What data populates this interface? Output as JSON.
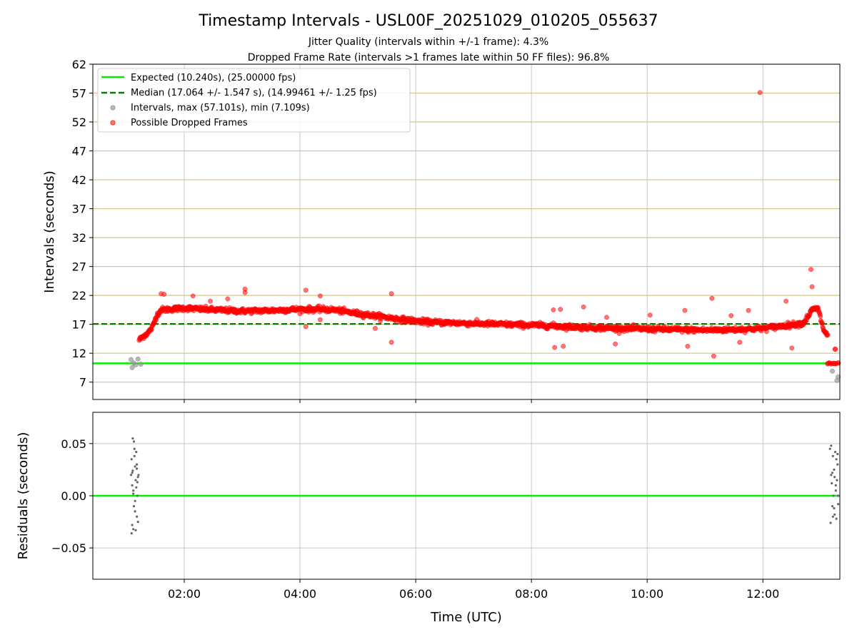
{
  "chart_data": [
    {
      "type": "scatter",
      "title": "Timestamp Intervals - USL00F_20251029_010205_055637",
      "subtitle_lines": [
        "Jitter Quality (intervals within +/-1 frame): 4.3%",
        "Dropped Frame Rate (intervals >1 frames late within 50 FF files): 96.8%"
      ],
      "xlabel": "",
      "ylabel": "Intervals (seconds)",
      "xlim_hours": [
        0.42,
        13.33
      ],
      "ylim": [
        4,
        62
      ],
      "yticks": [
        7,
        12,
        17,
        22,
        27,
        32,
        37,
        42,
        47,
        52,
        57,
        62
      ],
      "expected_interval": 10.24,
      "median_interval": 17.064,
      "legend": [
        "Expected (10.240s), (25.00000 fps)",
        "Median (17.064 +/- 1.547 s), (14.99461 +/- 1.25 fps)",
        "Intervals, max (57.101s), min (7.109s)",
        "Possible Dropped Frames"
      ],
      "legend_position": "top-left",
      "trend_series": {
        "name": "Possible Dropped Frames",
        "x_hours": [
          1.22,
          1.3,
          1.38,
          1.45,
          1.52,
          1.6,
          1.75,
          2.0,
          2.5,
          3.0,
          3.5,
          4.0,
          4.3,
          4.6,
          4.9,
          5.2,
          5.5,
          5.8,
          6.2,
          6.8,
          7.5,
          8.2,
          8.8,
          9.5,
          10.0,
          10.5,
          11.0,
          11.5,
          12.0,
          12.4,
          12.7,
          12.85,
          12.95,
          13.05,
          13.12
        ],
        "y_values": [
          14.3,
          15.0,
          15.6,
          16.5,
          18.5,
          19.5,
          19.6,
          19.8,
          19.5,
          19.3,
          19.4,
          19.6,
          19.6,
          19.5,
          19.0,
          18.6,
          18.2,
          17.8,
          17.4,
          17.2,
          17.0,
          16.8,
          16.5,
          16.3,
          16.2,
          16.1,
          16.0,
          16.1,
          16.3,
          16.8,
          17.2,
          19.5,
          19.8,
          16.0,
          15.0
        ]
      },
      "outlier_points": {
        "name": "Possible Dropped Frames (outliers)",
        "x_hours": [
          1.6,
          1.65,
          2.15,
          2.45,
          2.75,
          3.05,
          3.05,
          4.1,
          4.1,
          4.35,
          4.35,
          5.3,
          5.58,
          5.58,
          8.38,
          8.5,
          8.55,
          8.4,
          8.9,
          9.3,
          9.45,
          10.05,
          10.65,
          10.7,
          11.12,
          11.15,
          11.45,
          11.6,
          11.75,
          12.4,
          12.5,
          12.83,
          12.85,
          11.95
        ],
        "y_values": [
          22.3,
          22.2,
          21.9,
          21.0,
          21.4,
          22.5,
          23.1,
          22.9,
          16.6,
          21.9,
          17.8,
          16.3,
          22.3,
          13.9,
          19.5,
          19.6,
          13.2,
          13.0,
          20.0,
          18.2,
          13.6,
          18.6,
          19.4,
          13.2,
          21.5,
          11.5,
          18.5,
          13.9,
          19.4,
          21.0,
          12.9,
          26.5,
          23.5,
          57.1
        ]
      },
      "normal_points": {
        "name": "Intervals",
        "x_hours": [
          1.08,
          1.1,
          1.13,
          1.16,
          1.2,
          1.25,
          13.2,
          13.24,
          13.28,
          13.3
        ],
        "y_values": [
          10.9,
          9.5,
          10.3,
          10.0,
          11.0,
          10.1,
          8.9,
          10.2,
          7.3,
          7.9
        ]
      },
      "dropped_low_points": {
        "name": "Possible Dropped Frames (end)",
        "x_hours": [
          13.12,
          13.15,
          13.18,
          13.22,
          13.26,
          13.3,
          13.25
        ],
        "y_values": [
          10.2,
          10.3,
          10.2,
          10.25,
          10.2,
          10.3,
          12.7
        ]
      }
    },
    {
      "type": "scatter",
      "title": "",
      "xlabel": "Time (UTC)",
      "ylabel": "Residuals (seconds)",
      "xlim_hours": [
        0.42,
        13.33
      ],
      "ylim": [
        -0.08,
        0.08
      ],
      "yticks": [
        0.05,
        0.0,
        -0.05
      ],
      "ytick_labels": [
        "0.05",
        "0.00",
        "−0.05"
      ],
      "xticks_hours": [
        2,
        4,
        6,
        8,
        10,
        12
      ],
      "xtick_labels": [
        "02:00",
        "04:00",
        "06:00",
        "08:00",
        "10:00",
        "12:00"
      ],
      "zero_line": 0,
      "residual_points": {
        "x_hours": [
          1.08,
          1.09,
          1.1,
          1.1,
          1.11,
          1.12,
          1.12,
          1.13,
          1.13,
          1.14,
          1.15,
          1.15,
          1.16,
          1.17,
          1.18,
          1.18,
          1.19,
          1.2,
          1.2,
          1.21,
          1.09,
          1.12,
          1.15,
          1.18,
          1.1,
          1.14,
          1.17,
          1.11,
          1.16,
          1.19,
          13.16,
          13.17,
          13.18,
          13.19,
          13.2,
          13.21,
          13.22,
          13.23,
          13.24,
          13.25,
          13.26,
          13.27,
          13.28,
          13.29,
          13.3,
          13.18,
          13.21,
          13.24,
          13.27,
          13.3,
          13.2,
          13.23,
          13.26,
          13.29
        ],
        "y_values": [
          0.02,
          -0.036,
          0.01,
          0.022,
          0.055,
          -0.032,
          0.005,
          0.052,
          -0.01,
          0.038,
          0.028,
          -0.005,
          0.015,
          0.042,
          -0.02,
          0.03,
          0.0,
          0.018,
          -0.025,
          0.02,
          0.035,
          0.002,
          -0.015,
          0.026,
          -0.028,
          0.045,
          0.008,
          0.024,
          -0.033,
          0.013,
          0.045,
          -0.026,
          0.02,
          0.012,
          -0.01,
          0.038,
          0.0,
          0.025,
          -0.018,
          0.042,
          0.005,
          -0.022,
          0.015,
          0.03,
          -0.008,
          0.048,
          -0.02,
          0.018,
          0.035,
          0.0,
          0.022,
          -0.012,
          0.01,
          0.04
        ]
      }
    }
  ],
  "colors": {
    "expected": "#00ee00",
    "median": "#008000",
    "dropped": "#ff0000",
    "intervals": "#999999",
    "residual": "#666666",
    "hgrid_top": "#d4c38a",
    "vgrid": "#c8c8c8",
    "hgrid_bottom": "#c8c8c8"
  }
}
